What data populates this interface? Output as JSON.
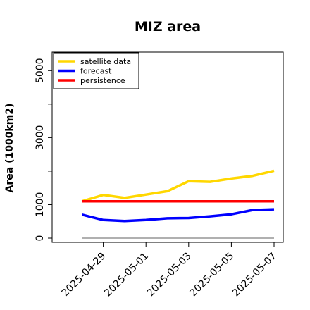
{
  "chart_data": {
    "type": "line",
    "title": "MIZ area",
    "ylabel": "Area (1000km2)",
    "xlabel": "",
    "x": [
      "2025-04-28",
      "2025-04-29",
      "2025-04-30",
      "2025-05-01",
      "2025-05-02",
      "2025-05-03",
      "2025-05-04",
      "2025-05-05",
      "2025-05-06",
      "2025-05-07"
    ],
    "x_tick_labels": [
      "2025-04-29",
      "2025-05-01",
      "2025-05-03",
      "2025-05-05",
      "2025-05-07"
    ],
    "x_tick_dates": [
      "2025-04-29",
      "2025-05-01",
      "2025-05-03",
      "2025-05-05",
      "2025-05-07"
    ],
    "highlight_tick": "2025-04-29",
    "highlight_color": "#228B22",
    "y_ticks": [
      0,
      1000,
      2000,
      3000,
      4000,
      5000
    ],
    "y_tick_labels": [
      "0",
      "1000",
      "",
      "3000",
      "",
      "5000"
    ],
    "xlim": [
      "2025-04-27",
      "2025-05-07"
    ],
    "ylim": [
      0,
      5300
    ],
    "grid": false,
    "legend_position": "top-left",
    "series": [
      {
        "name": "satellite data",
        "color": "#FFD700",
        "values": [
          1100,
          1290,
          1200,
          1300,
          1400,
          1700,
          1680,
          1780,
          1860,
          2010
        ]
      },
      {
        "name": "forecast",
        "color": "#0000FF",
        "values": [
          700,
          540,
          510,
          540,
          590,
          600,
          650,
          710,
          840,
          860
        ]
      },
      {
        "name": "persistence",
        "color": "#FF0000",
        "values": [
          1100,
          1100,
          1100,
          1100,
          1100,
          1100,
          1100,
          1100,
          1100,
          1100
        ]
      }
    ],
    "reference_line": {
      "value": 0,
      "color": "#808080"
    }
  }
}
